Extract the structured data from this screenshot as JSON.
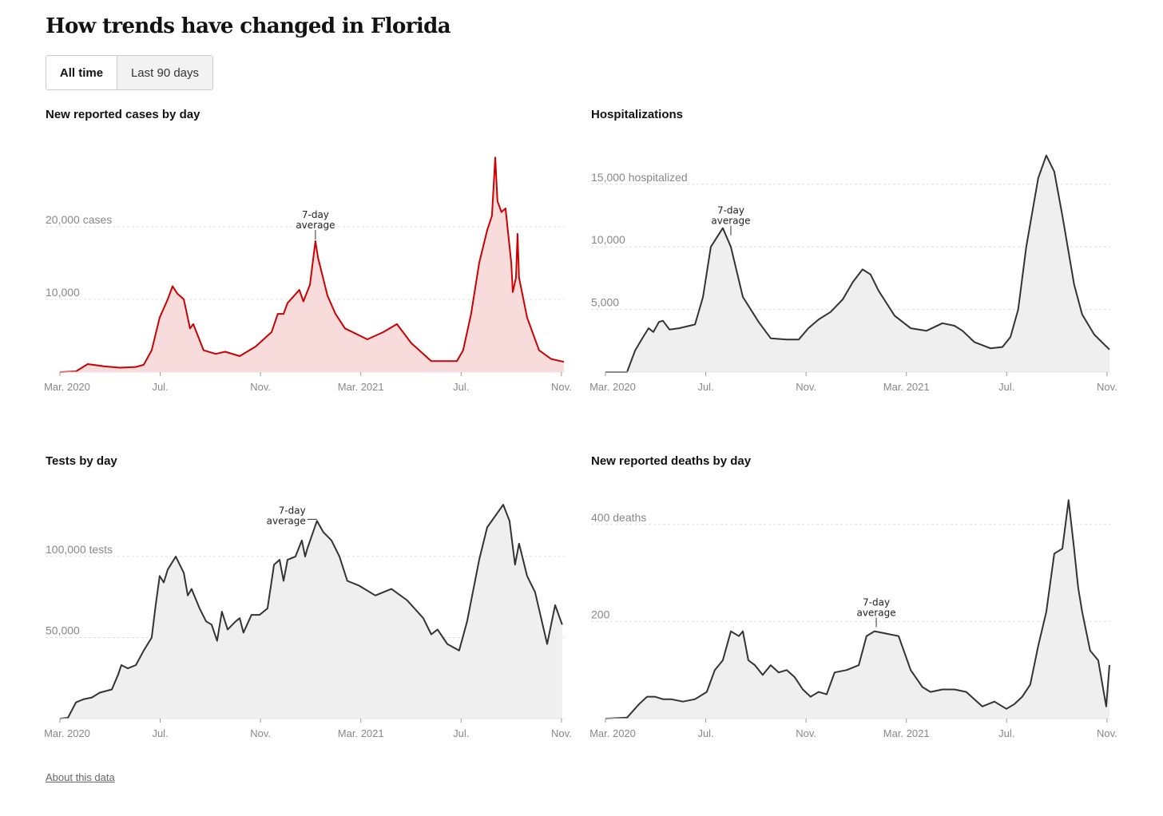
{
  "title": "How trends have changed in Florida",
  "toggle": {
    "all_time": "All time",
    "last_90": "Last 90 days"
  },
  "footer": {
    "about": "About this data"
  },
  "chart_data": [
    {
      "type": "area",
      "title": "New reported cases by day",
      "line_color": "#cc0000",
      "fill_color": "#f8dcdc",
      "x_unit": "months since Mar. 2020",
      "xlim": [
        0,
        20.1
      ],
      "ylim": [
        0,
        30300
      ],
      "ticks": [
        {
          "x": 0,
          "label": "Mar. 2020"
        },
        {
          "x": 4,
          "label": "Jul."
        },
        {
          "x": 8,
          "label": "Nov."
        },
        {
          "x": 12,
          "label": "Mar. 2021"
        },
        {
          "x": 16,
          "label": "Jul."
        },
        {
          "x": 20,
          "label": "Nov."
        }
      ],
      "grid": [
        {
          "y": 10000,
          "label": "10,000"
        },
        {
          "y": 20000,
          "label": "20,000 cases"
        }
      ],
      "annotation": {
        "x": 10.19,
        "y": 18000,
        "lines": [
          "7-day",
          "average"
        ]
      },
      "x": [
        0,
        0.64,
        1.11,
        1.75,
        2.39,
        3.03,
        3.34,
        3.66,
        3.98,
        4.3,
        4.49,
        4.68,
        4.94,
        5.19,
        5.32,
        5.73,
        6.21,
        6.59,
        7.17,
        7.8,
        8.44,
        8.69,
        8.92,
        9.08,
        9.55,
        9.71,
        9.97,
        10.19,
        10.29,
        10.67,
        10.99,
        11.37,
        12.26,
        12.9,
        13.44,
        14.01,
        14.81,
        15.45,
        15.83,
        16.08,
        16.4,
        16.72,
        17.04,
        17.23,
        17.36,
        17.45,
        17.61,
        17.77,
        18.0,
        18.06,
        18.19,
        18.25,
        18.31,
        18.63,
        19.11,
        19.59,
        20.1
      ],
      "values": [
        0,
        100,
        1100,
        800,
        600,
        700,
        1000,
        3000,
        7500,
        10000,
        11800,
        10800,
        10000,
        6000,
        6600,
        3000,
        2500,
        2800,
        2200,
        3500,
        5500,
        8000,
        8000,
        9500,
        11300,
        9700,
        12000,
        18000,
        15800,
        10500,
        8000,
        6000,
        4500,
        5500,
        6600,
        4000,
        1500,
        1500,
        1500,
        3000,
        8000,
        15000,
        19500,
        21500,
        29500,
        23500,
        22000,
        22500,
        15000,
        11000,
        13000,
        19000,
        13000,
        7500,
        3000,
        1800,
        1400
      ]
    },
    {
      "type": "area",
      "title": "Hospitalizations",
      "line_color": "#333333",
      "fill_color": "#efefef",
      "x_unit": "months since Mar. 2020",
      "xlim": [
        0,
        20.1
      ],
      "ylim": [
        0,
        17600
      ],
      "ticks": [
        {
          "x": 0,
          "label": "Mar. 2020"
        },
        {
          "x": 4,
          "label": "Jul."
        },
        {
          "x": 8,
          "label": "Nov."
        },
        {
          "x": 12,
          "label": "Mar. 2021"
        },
        {
          "x": 16,
          "label": "Jul."
        },
        {
          "x": 20,
          "label": "Nov."
        }
      ],
      "grid": [
        {
          "y": 5000,
          "label": "5,000"
        },
        {
          "y": 10000,
          "label": "10,000"
        },
        {
          "y": 15000,
          "label": "15,000 hospitalized"
        }
      ],
      "annotation": {
        "x": 5.0,
        "y": 10800,
        "lines": [
          "7-day",
          "average"
        ]
      },
      "x": [
        0,
        0.86,
        1.18,
        1.5,
        1.72,
        1.91,
        2.13,
        2.29,
        2.55,
        2.93,
        3.57,
        3.89,
        4.2,
        4.68,
        5.0,
        5.48,
        6.11,
        6.59,
        7.23,
        7.71,
        8.09,
        8.5,
        8.98,
        9.46,
        9.87,
        10.25,
        10.57,
        10.89,
        11.53,
        12.17,
        12.8,
        13.44,
        13.92,
        14.24,
        14.71,
        15.35,
        15.83,
        16.15,
        16.46,
        16.78,
        17.26,
        17.58,
        17.9,
        18.22,
        18.69,
        19.01,
        19.49,
        20.1
      ],
      "values": [
        0,
        0,
        1700,
        2800,
        3500,
        3200,
        4000,
        4100,
        3400,
        3500,
        3800,
        6000,
        10000,
        11500,
        10000,
        6000,
        4000,
        2700,
        2600,
        2600,
        3500,
        4200,
        4800,
        5800,
        7200,
        8200,
        7800,
        6500,
        4500,
        3500,
        3300,
        3900,
        3700,
        3300,
        2400,
        1900,
        2000,
        2800,
        5000,
        10000,
        15500,
        17300,
        16000,
        12500,
        7000,
        4600,
        3000,
        1800
      ]
    },
    {
      "type": "area",
      "title": "Tests by day",
      "line_color": "#333333",
      "fill_color": "#efefef",
      "x_unit": "months since Mar. 2020",
      "xlim": [
        0,
        20.1
      ],
      "ylim": [
        0,
        136000
      ],
      "ticks": [
        {
          "x": 0,
          "label": "Mar. 2020"
        },
        {
          "x": 4,
          "label": "Jul."
        },
        {
          "x": 8,
          "label": "Nov."
        },
        {
          "x": 12,
          "label": "Mar. 2021"
        },
        {
          "x": 16,
          "label": "Jul."
        },
        {
          "x": 20,
          "label": "Nov."
        }
      ],
      "grid": [
        {
          "y": 50000,
          "label": "50,000"
        },
        {
          "y": 100000,
          "label": "100,000 tests"
        }
      ],
      "annotation": {
        "x": 10.25,
        "y": 122000,
        "lines": [
          "7-day",
          "average"
        ]
      },
      "x": [
        0,
        0.32,
        0.64,
        0.96,
        1.27,
        1.59,
        2.07,
        2.32,
        2.45,
        2.71,
        3.03,
        3.34,
        3.66,
        3.82,
        3.98,
        4.14,
        4.3,
        4.62,
        4.94,
        5.1,
        5.25,
        5.57,
        5.83,
        6.05,
        6.27,
        6.46,
        6.69,
        7.01,
        7.17,
        7.32,
        7.64,
        7.96,
        8.28,
        8.54,
        8.76,
        8.92,
        9.08,
        9.39,
        9.65,
        9.78,
        9.87,
        10.25,
        10.51,
        10.83,
        11.15,
        11.46,
        11.94,
        12.58,
        13.22,
        13.85,
        14.49,
        14.81,
        15.06,
        15.45,
        15.92,
        16.24,
        16.72,
        17.04,
        17.68,
        17.93,
        18.15,
        18.31,
        18.63,
        18.95,
        19.43,
        19.75,
        20.03
      ],
      "values": [
        0,
        500,
        10000,
        12000,
        13000,
        16000,
        18000,
        27000,
        33000,
        31000,
        33000,
        42000,
        50000,
        70000,
        88000,
        84000,
        92000,
        100000,
        90000,
        76000,
        80000,
        68000,
        60000,
        58000,
        48000,
        66000,
        55000,
        60000,
        62000,
        53000,
        64000,
        64000,
        68000,
        95000,
        98000,
        85000,
        98000,
        100000,
        110000,
        100000,
        105000,
        122000,
        115000,
        110000,
        100000,
        85000,
        82000,
        76000,
        80000,
        73000,
        62000,
        52000,
        55000,
        46000,
        42000,
        60000,
        98000,
        118000,
        132000,
        122000,
        95000,
        108000,
        88000,
        78000,
        46000,
        70000,
        58000
      ]
    },
    {
      "type": "area",
      "title": "New reported deaths by day",
      "line_color": "#333333",
      "fill_color": "#efefef",
      "x_unit": "months since Mar. 2020",
      "xlim": [
        0,
        20.1
      ],
      "ylim": [
        0,
        454
      ],
      "ticks": [
        {
          "x": 0,
          "label": "Mar. 2020"
        },
        {
          "x": 4,
          "label": "Jul."
        },
        {
          "x": 8,
          "label": "Nov."
        },
        {
          "x": 12,
          "label": "Mar. 2021"
        },
        {
          "x": 16,
          "label": "Jul."
        },
        {
          "x": 20,
          "label": "Nov."
        }
      ],
      "grid": [
        {
          "y": 200,
          "label": "200"
        },
        {
          "y": 400,
          "label": "400 deaths"
        }
      ],
      "annotation": {
        "x": 10.8,
        "y": 185,
        "lines": [
          "7-day",
          "average"
        ]
      },
      "x": [
        0,
        0.86,
        1.34,
        1.66,
        1.97,
        2.29,
        2.61,
        3.09,
        3.57,
        4.04,
        4.36,
        4.68,
        5.0,
        5.32,
        5.48,
        5.7,
        5.96,
        6.27,
        6.59,
        6.91,
        7.23,
        7.55,
        7.87,
        8.18,
        8.5,
        8.82,
        9.14,
        9.62,
        10.1,
        10.41,
        10.73,
        11.21,
        11.69,
        12.17,
        12.64,
        12.96,
        13.44,
        13.92,
        14.39,
        15.03,
        15.51,
        15.99,
        16.31,
        16.62,
        16.94,
        17.26,
        17.58,
        17.9,
        18.22,
        18.47,
        18.69,
        18.85,
        19.01,
        19.33,
        19.65,
        19.97,
        20.1
      ],
      "values": [
        0,
        2,
        30,
        45,
        45,
        40,
        40,
        35,
        40,
        55,
        100,
        120,
        180,
        170,
        180,
        120,
        110,
        90,
        110,
        95,
        100,
        85,
        60,
        45,
        55,
        50,
        95,
        100,
        110,
        170,
        180,
        175,
        170,
        100,
        65,
        55,
        60,
        60,
        55,
        25,
        35,
        20,
        30,
        45,
        70,
        150,
        220,
        340,
        350,
        450,
        350,
        270,
        220,
        140,
        120,
        25,
        110
      ]
    }
  ]
}
